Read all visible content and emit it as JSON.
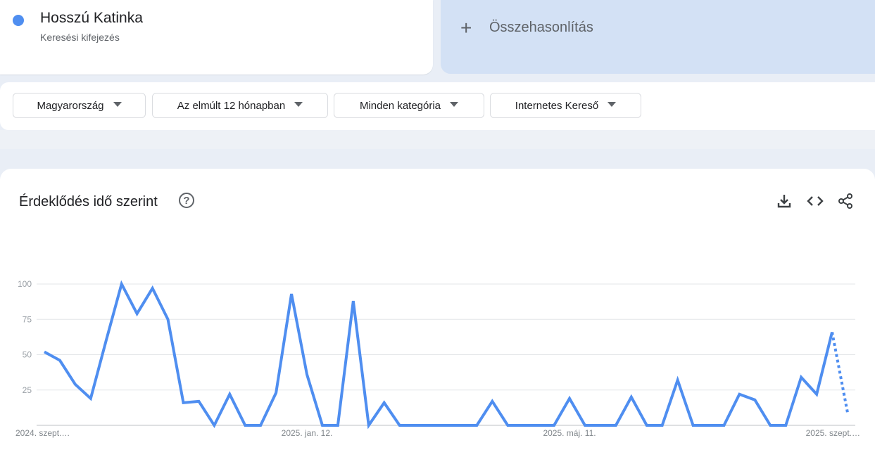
{
  "term": {
    "name": "Hosszú Katinka",
    "subtitle": "Keresési kifejezés",
    "color": "#4f8ef0"
  },
  "compare": {
    "icon": "plus-icon",
    "plus": "+",
    "label": "Összehasonlítás"
  },
  "filters": [
    {
      "label": "Magyarország"
    },
    {
      "label": "Az elmúlt 12 hónapban"
    },
    {
      "label": "Minden kategória"
    },
    {
      "label": "Internetes Kereső"
    }
  ],
  "chart_section": {
    "title": "Érdeklődés idő szerint",
    "help": "?",
    "tools": [
      "download-icon",
      "embed-code-icon",
      "share-icon"
    ]
  },
  "chart_data": {
    "type": "line",
    "x_tick_labels": [
      "2024. szept.…",
      "2025. jan. 12.",
      "2025. máj. 11.",
      "2025. szept.…"
    ],
    "x_tick_index": [
      0,
      17,
      34,
      52
    ],
    "y_ticks": [
      25,
      50,
      75,
      100
    ],
    "ylim": [
      0,
      100
    ],
    "grid": true,
    "series": [
      {
        "color": "#4f8ef0",
        "values": [
          52,
          46,
          29,
          19,
          60,
          100,
          79,
          97,
          75,
          16,
          17,
          0,
          22,
          0,
          0,
          23,
          93,
          36,
          0,
          0,
          88,
          0,
          16,
          0,
          0,
          0,
          0,
          0,
          0,
          17,
          0,
          0,
          0,
          0,
          19,
          0,
          0,
          0,
          20,
          0,
          0,
          32,
          0,
          0,
          0,
          22,
          18,
          0,
          0,
          34,
          22,
          66,
          9
        ],
        "last_point_partial": true
      }
    ]
  }
}
